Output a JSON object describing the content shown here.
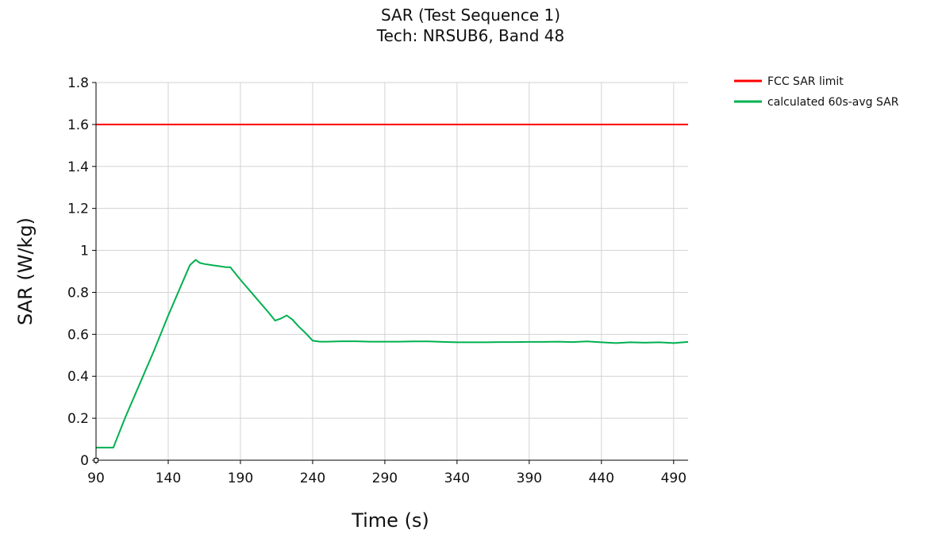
{
  "chart_data": {
    "type": "line",
    "title": "SAR (Test Sequence 1)",
    "subtitle": "Tech: NRSUB6, Band 48",
    "xlabel": "Time (s)",
    "ylabel": "SAR (W/kg)",
    "xlim": [
      90,
      500
    ],
    "ylim": [
      0,
      1.8
    ],
    "xticks": [
      90,
      140,
      190,
      240,
      290,
      340,
      390,
      440,
      490
    ],
    "yticks": [
      0,
      0.2,
      0.4,
      0.6,
      0.8,
      1,
      1.2,
      1.4,
      1.6,
      1.8
    ],
    "ytick_labels": [
      "0",
      "0.2",
      "0.4",
      "0.6",
      "0.8",
      "1",
      "1.2",
      "1.4",
      "1.6",
      "1.8"
    ],
    "grid": true,
    "legend_position": "top-right outside",
    "series": [
      {
        "name": "FCC SAR limit",
        "color": "#ff0000",
        "x": [
          90,
          500
        ],
        "y": [
          1.6,
          1.6
        ]
      },
      {
        "name": "calculated 60s-avg SAR",
        "color": "#00b050",
        "x": [
          90,
          102,
          110,
          120,
          130,
          140,
          150,
          155,
          159,
          162,
          165,
          170,
          175,
          180,
          183,
          190,
          200,
          210,
          214,
          218,
          222,
          226,
          230,
          236,
          240,
          245,
          250,
          260,
          270,
          280,
          290,
          300,
          310,
          320,
          330,
          340,
          350,
          360,
          370,
          380,
          390,
          400,
          410,
          420,
          430,
          440,
          450,
          460,
          470,
          480,
          490,
          500
        ],
        "y": [
          0.06,
          0.06,
          0.2,
          0.36,
          0.52,
          0.69,
          0.85,
          0.93,
          0.955,
          0.94,
          0.935,
          0.93,
          0.925,
          0.92,
          0.92,
          0.86,
          0.78,
          0.7,
          0.665,
          0.675,
          0.69,
          0.67,
          0.64,
          0.6,
          0.57,
          0.565,
          0.565,
          0.567,
          0.567,
          0.565,
          0.565,
          0.565,
          0.566,
          0.566,
          0.564,
          0.562,
          0.562,
          0.562,
          0.563,
          0.563,
          0.564,
          0.564,
          0.565,
          0.563,
          0.566,
          0.562,
          0.558,
          0.562,
          0.56,
          0.562,
          0.558,
          0.564
        ]
      }
    ]
  }
}
